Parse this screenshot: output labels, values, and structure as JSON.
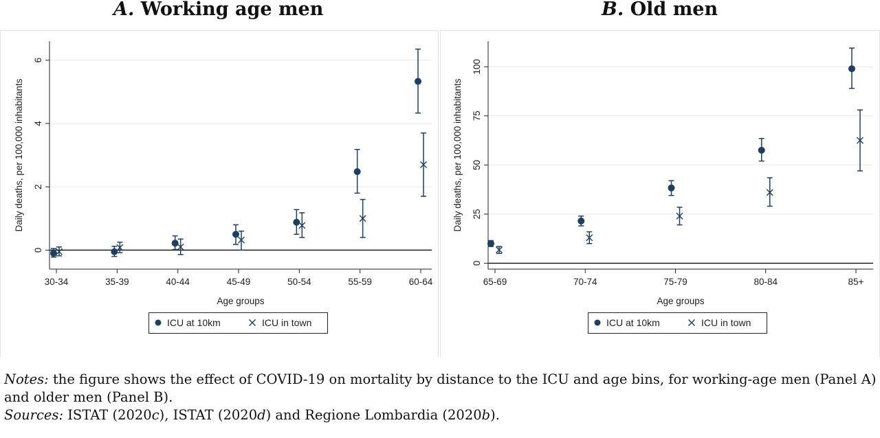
{
  "panels": [
    {
      "letter": "A.",
      "title": "Working age men"
    },
    {
      "letter": "B.",
      "title": "Old men"
    }
  ],
  "chart_data": [
    {
      "type": "scatter",
      "title": "A. Working age men",
      "xlabel": "Age groups",
      "ylabel": "Daily deaths, per 100,000 inhabitants",
      "categories": [
        "30-34",
        "35-39",
        "40-44",
        "45-49",
        "50-54",
        "55-59",
        "60-64"
      ],
      "ylim": [
        -0.6,
        6.6
      ],
      "yticks": [
        0,
        2,
        4,
        6
      ],
      "grid": true,
      "legend_position": "bottom",
      "series": [
        {
          "name": "ICU at 10km",
          "marker": "circle",
          "values": [
            -0.1,
            -0.05,
            0.22,
            0.5,
            0.88,
            2.48,
            5.33
          ],
          "ci_low": [
            -0.22,
            -0.2,
            0.02,
            0.18,
            0.5,
            1.8,
            4.33
          ],
          "ci_high": [
            0.05,
            0.12,
            0.45,
            0.8,
            1.28,
            3.18,
            6.35
          ]
        },
        {
          "name": "ICU in town",
          "marker": "x",
          "values": [
            -0.05,
            0.08,
            0.1,
            0.32,
            0.78,
            1.0,
            2.7
          ],
          "ci_low": [
            -0.18,
            -0.08,
            -0.14,
            0.0,
            0.4,
            0.4,
            1.7
          ],
          "ci_high": [
            0.1,
            0.25,
            0.35,
            0.6,
            1.18,
            1.6,
            3.7
          ]
        }
      ],
      "colors": {
        "series": "#1f3f60"
      }
    },
    {
      "type": "scatter",
      "title": "B. Old men",
      "xlabel": "Age groups",
      "ylabel": "Daily deaths, per 100,000 inhabitants",
      "categories": [
        "65-69",
        "70-74",
        "75-79",
        "80-84",
        "85+"
      ],
      "ylim": [
        -3,
        113
      ],
      "yticks": [
        0,
        25,
        50,
        75,
        100
      ],
      "grid": true,
      "legend_position": "bottom",
      "series": [
        {
          "name": "ICU at 10km",
          "marker": "circle",
          "values": [
            10,
            21.5,
            38.3,
            57.5,
            99
          ],
          "ci_low": [
            8.5,
            19,
            34.5,
            52,
            89
          ],
          "ci_high": [
            11.5,
            24,
            42,
            63.5,
            109.5
          ]
        },
        {
          "name": "ICU in town",
          "marker": "x",
          "values": [
            6.8,
            13,
            24,
            36,
            62.5
          ],
          "ci_low": [
            5,
            10,
            19.5,
            29,
            47
          ],
          "ci_high": [
            8.5,
            16,
            28.5,
            43.5,
            78
          ]
        }
      ],
      "colors": {
        "series": "#1f3f60"
      }
    }
  ],
  "notes": {
    "notes_label": "Notes:",
    "notes_text": "the figure shows the effect of COVID-19 on mortality by distance to the ICU and age bins, for working-age men (Panel A) and older men (Panel B).",
    "sources_label": "Sources:",
    "src1": "ISTAT (2020",
    "src1_suffix": "c",
    "src1_close": "), ",
    "src2": "ISTAT (2020",
    "src2_suffix": "d",
    "src2_close": ") and ",
    "src3": "Regione Lombardia (2020",
    "src3_suffix": "b",
    "src3_close": ")."
  }
}
